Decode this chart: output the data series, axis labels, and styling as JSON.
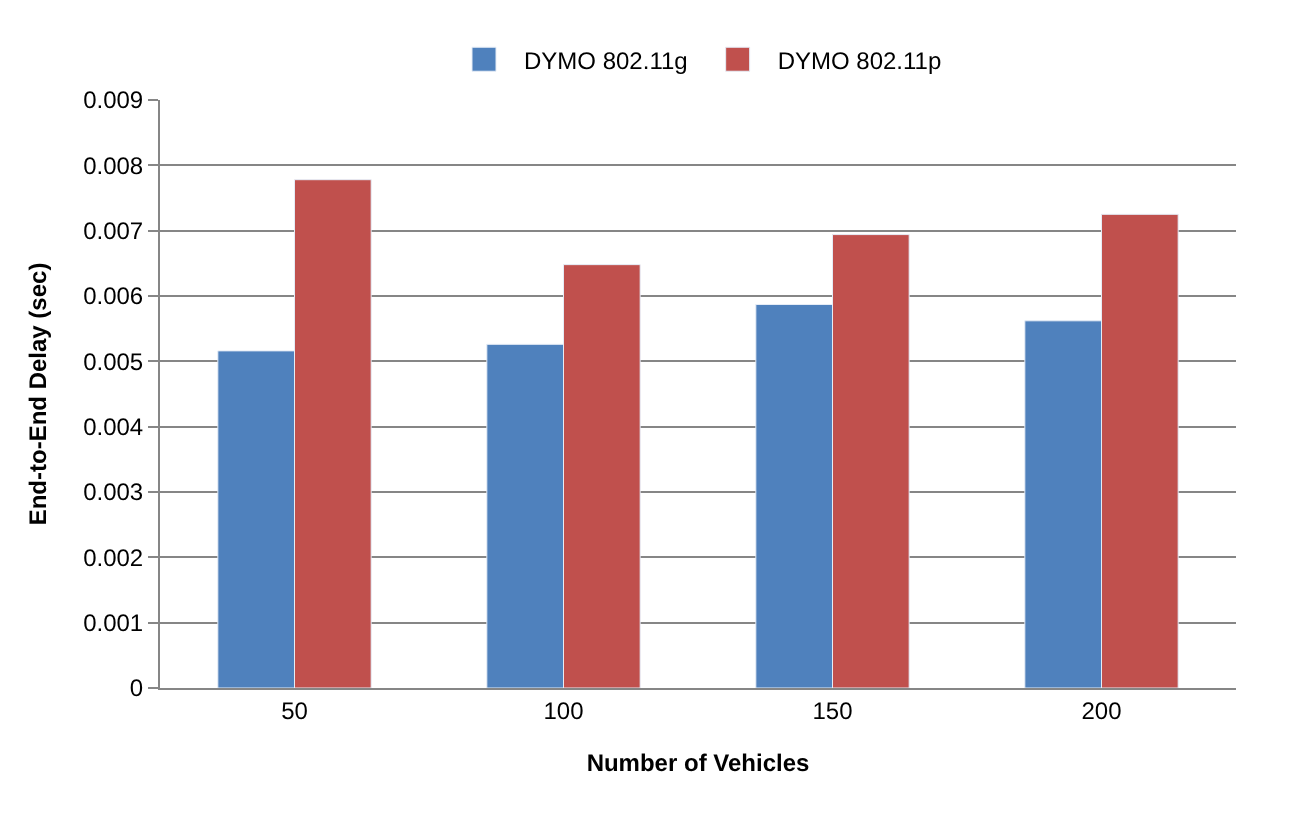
{
  "chart_data": {
    "type": "bar",
    "xlabel": "Number of Vehicles",
    "ylabel": "End-to-End Delay (sec)",
    "categories": [
      "50",
      "100",
      "150",
      "200"
    ],
    "series": [
      {
        "name": "DYMO 802.11g",
        "color": "#4f81bd",
        "values": [
          0.00516,
          0.00526,
          0.00587,
          0.00562
        ]
      },
      {
        "name": "DYMO 802.11p",
        "color": "#c0504d",
        "values": [
          0.00778,
          0.00648,
          0.00694,
          0.00725
        ]
      }
    ],
    "ylim": [
      0,
      0.009
    ],
    "yticks": [
      0,
      0.001,
      0.002,
      0.003,
      0.004,
      0.005,
      0.006,
      0.007,
      0.008,
      0.009
    ],
    "grid": "y",
    "legend": "top"
  }
}
